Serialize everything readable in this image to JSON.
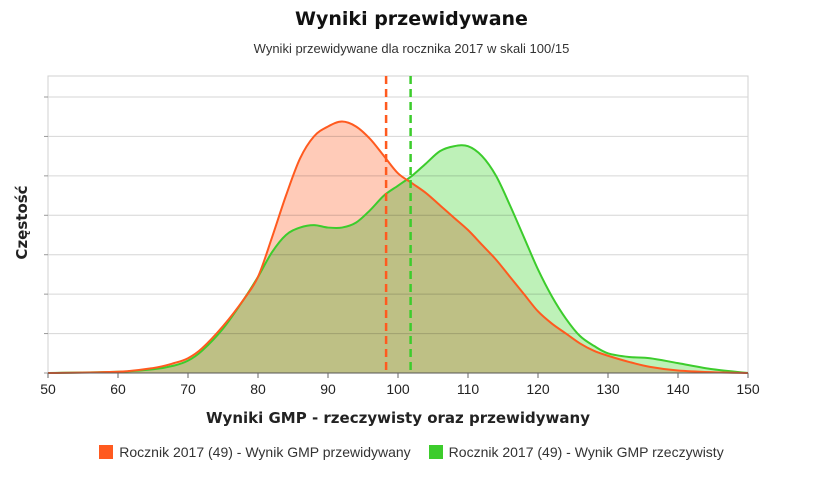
{
  "chart_data": {
    "type": "area",
    "title": "Wyniki przewidywane",
    "subtitle": "Wyniki przewidywane dla rocznika 2017 w skali 100/15",
    "xlabel": "Wyniki GMP - rzeczywisty oraz przewidywany",
    "ylabel": "Częstość",
    "xlim": [
      50,
      150
    ],
    "ylim": [
      0,
      1
    ],
    "x_ticks": [
      "50",
      "60",
      "70",
      "80",
      "90",
      "100",
      "110",
      "120",
      "130",
      "140",
      "150"
    ],
    "grid": true,
    "legend_position": "bottom",
    "series": [
      {
        "name": "Rocznik 2017 (49) - Wynik GMP przewidywany",
        "color": "#ff5a1f",
        "fill": "#ffb9a0",
        "mean": 98.3,
        "x": [
          50,
          60,
          65,
          68,
          70,
          72,
          75,
          78,
          80,
          82,
          84,
          86,
          88,
          90,
          92,
          94,
          96,
          98,
          100,
          102,
          104,
          106,
          108,
          110,
          112,
          114,
          116,
          118,
          120,
          122,
          124,
          126,
          128,
          130,
          133,
          136,
          140,
          145,
          150
        ],
        "y": [
          0,
          0.005,
          0.02,
          0.04,
          0.06,
          0.1,
          0.19,
          0.3,
          0.39,
          0.55,
          0.72,
          0.87,
          0.96,
          1.0,
          1.02,
          1.0,
          0.95,
          0.88,
          0.81,
          0.77,
          0.73,
          0.68,
          0.63,
          0.58,
          0.52,
          0.46,
          0.39,
          0.32,
          0.25,
          0.2,
          0.16,
          0.12,
          0.09,
          0.07,
          0.045,
          0.025,
          0.01,
          0.003,
          0
        ]
      },
      {
        "name": "Rocznik 2017 (49) - Wynik GMP rzeczywisty",
        "color": "#3ccc2c",
        "fill": "#a8eca0",
        "mean": 101.8,
        "x": [
          50,
          60,
          65,
          68,
          70,
          72,
          75,
          78,
          80,
          82,
          84,
          86,
          88,
          90,
          92,
          94,
          96,
          98,
          100,
          102,
          104,
          106,
          108,
          110,
          112,
          114,
          116,
          118,
          120,
          122,
          124,
          126,
          128,
          130,
          133,
          136,
          140,
          145,
          150
        ],
        "y": [
          0,
          0.005,
          0.015,
          0.03,
          0.05,
          0.09,
          0.18,
          0.3,
          0.39,
          0.49,
          0.56,
          0.59,
          0.6,
          0.59,
          0.59,
          0.61,
          0.66,
          0.72,
          0.76,
          0.8,
          0.85,
          0.9,
          0.92,
          0.92,
          0.88,
          0.8,
          0.68,
          0.55,
          0.42,
          0.31,
          0.22,
          0.15,
          0.11,
          0.08,
          0.065,
          0.06,
          0.04,
          0.015,
          0
        ]
      }
    ]
  }
}
